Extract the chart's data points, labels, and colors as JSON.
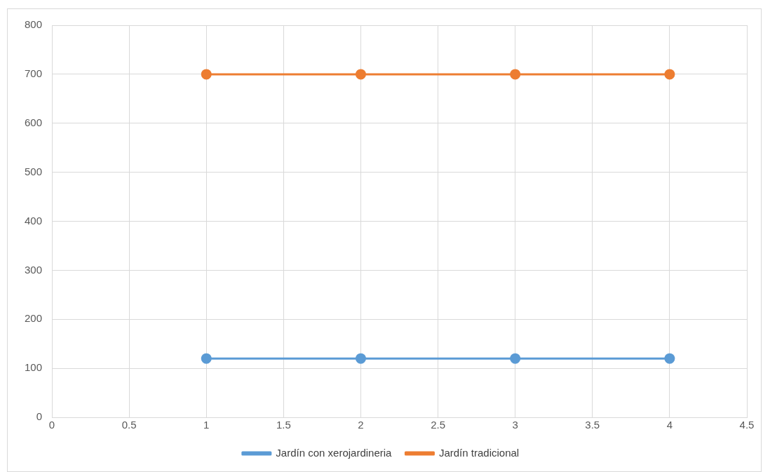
{
  "chart_data": {
    "type": "line",
    "x": [
      1,
      2,
      3,
      4
    ],
    "series": [
      {
        "name": "Jardín con xerojardineria",
        "color": "#5b9bd5",
        "values": [
          120,
          120,
          120,
          120
        ]
      },
      {
        "name": "Jardín tradicional",
        "color": "#ed7d31",
        "values": [
          700,
          700,
          700,
          700
        ]
      }
    ],
    "xlim": [
      0,
      4.5
    ],
    "xticks": [
      0,
      0.5,
      1,
      1.5,
      2,
      2.5,
      3,
      3.5,
      4,
      4.5
    ],
    "ylim": [
      0,
      800
    ],
    "yticks": [
      0,
      100,
      200,
      300,
      400,
      500,
      600,
      700,
      800
    ],
    "grid": true,
    "legend": "bottom",
    "marker": "circle",
    "line_style": "solid"
  }
}
